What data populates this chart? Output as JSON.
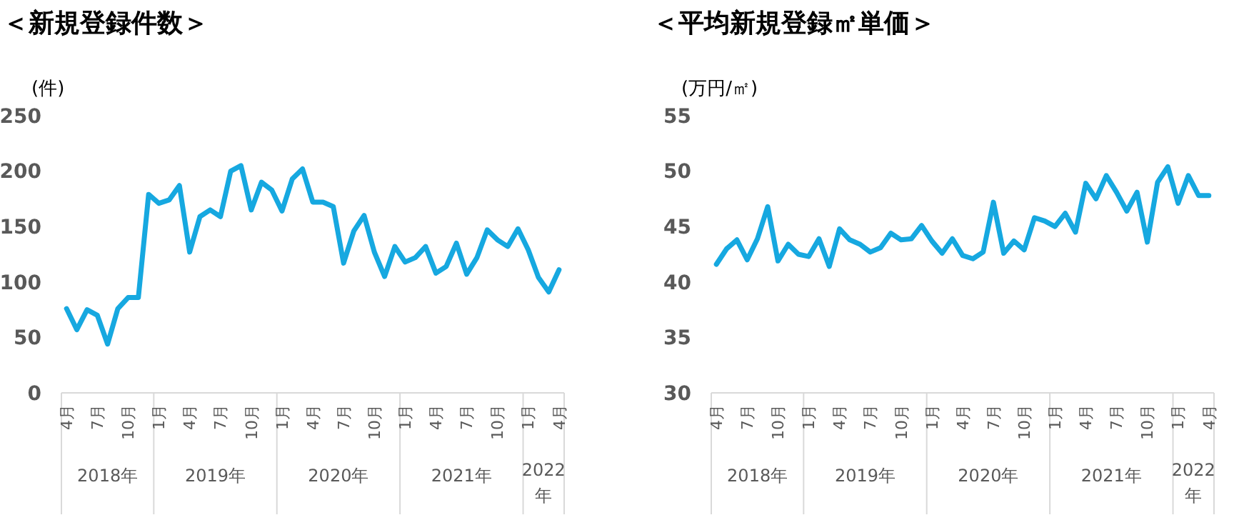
{
  "chart_data": [
    {
      "type": "line",
      "title": "＜新規登録件数＞",
      "ylabel": "(件)",
      "categories": [
        "4月",
        null,
        null,
        "7月",
        null,
        null,
        "10月",
        null,
        null,
        "1月",
        null,
        null,
        "4月",
        null,
        null,
        "7月",
        null,
        null,
        "10月",
        null,
        null,
        "1月",
        null,
        null,
        "4月",
        null,
        null,
        "7月",
        null,
        null,
        "10月",
        null,
        null,
        "1月",
        null,
        null,
        "4月",
        null,
        null,
        "7月",
        null,
        null,
        "10月",
        null,
        null,
        "1月",
        null,
        null,
        "4月"
      ],
      "series": [
        {
          "color": "#16a8e0",
          "values": [
            76,
            57,
            75,
            70,
            44,
            76,
            86,
            86,
            179,
            171,
            174,
            187,
            127,
            159,
            165,
            159,
            200,
            205,
            165,
            190,
            183,
            164,
            193,
            202,
            172,
            172,
            168,
            117,
            146,
            160,
            127,
            105,
            132,
            118,
            122,
            132,
            108,
            114,
            135,
            107,
            122,
            147,
            138,
            132,
            148,
            129,
            104,
            91,
            111
          ]
        }
      ],
      "ylim": [
        0,
        250
      ],
      "yticks": [
        0,
        50,
        100,
        150,
        200,
        250
      ],
      "annotations": [
        "2018年",
        "2019年",
        "2020年",
        "2021年",
        "2022年"
      ]
    },
    {
      "type": "line",
      "title": "＜平均新規登録㎡単価＞",
      "ylabel": "(万円/㎡)",
      "categories": [
        "4月",
        null,
        null,
        "7月",
        null,
        null,
        "10月",
        null,
        null,
        "1月",
        null,
        null,
        "4月",
        null,
        null,
        "7月",
        null,
        null,
        "10月",
        null,
        null,
        "1月",
        null,
        null,
        "4月",
        null,
        null,
        "7月",
        null,
        null,
        "10月",
        null,
        null,
        "1月",
        null,
        null,
        "4月",
        null,
        null,
        "7月",
        null,
        null,
        "10月",
        null,
        null,
        "1月",
        null,
        null,
        "4月"
      ],
      "series": [
        {
          "color": "#16a8e0",
          "values": [
            41.6,
            43.0,
            43.8,
            42.0,
            43.9,
            46.8,
            41.9,
            43.4,
            42.5,
            42.3,
            43.9,
            41.4,
            44.8,
            43.8,
            43.4,
            42.7,
            43.1,
            44.4,
            43.8,
            43.9,
            45.1,
            43.7,
            42.6,
            43.9,
            42.4,
            42.1,
            42.7,
            47.2,
            42.6,
            43.7,
            42.9,
            45.8,
            45.5,
            45.0,
            46.2,
            44.5,
            48.9,
            47.5,
            49.6,
            48.1,
            46.4,
            48.1,
            43.6,
            49.0,
            50.4,
            47.1,
            49.6,
            47.8,
            47.8
          ]
        }
      ],
      "ylim": [
        30,
        55
      ],
      "yticks": [
        30,
        35,
        40,
        45,
        50,
        55
      ],
      "annotations": [
        "2018年",
        "2019年",
        "2020年",
        "2021年",
        "2022年"
      ]
    }
  ]
}
